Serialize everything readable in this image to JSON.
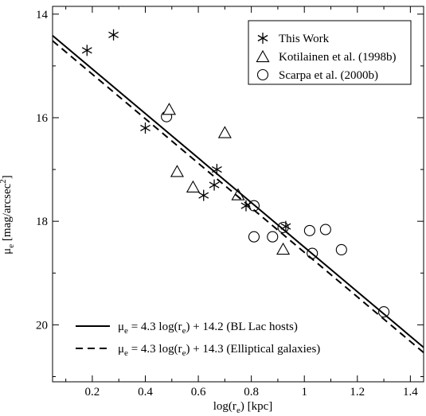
{
  "chart_data": {
    "type": "scatter",
    "xlabel": {
      "main": "log(r",
      "sub": "e",
      "tail": ") [kpc]"
    },
    "ylabel": {
      "main": "μ",
      "sub": "e",
      "mid": " [mag/arcsec",
      "sup": "2",
      "tail": "]"
    },
    "xlim": [
      0.05,
      1.45
    ],
    "ylim": [
      21.1,
      13.85
    ],
    "y_inverted": true,
    "x_ticks": [
      "0.2",
      "0.4",
      "0.6",
      "0.8",
      "1",
      "1.2",
      "1.4"
    ],
    "y_ticks": [
      "14",
      "16",
      "18",
      "20"
    ],
    "grid": false,
    "legend_position": "top-right",
    "series": [
      {
        "name": "This Work",
        "marker": "asterisk",
        "x": [
          0.18,
          0.28,
          0.4,
          0.62,
          0.66,
          0.67,
          0.78,
          0.93
        ],
        "y": [
          14.7,
          14.4,
          16.2,
          17.5,
          17.3,
          17.0,
          17.7,
          18.1
        ]
      },
      {
        "name": "Kotilainen et al. (1998b)",
        "marker": "triangle",
        "x": [
          0.49,
          0.52,
          0.58,
          0.7,
          0.75,
          0.92
        ],
        "y": [
          15.85,
          17.05,
          17.35,
          16.3,
          17.5,
          18.55
        ]
      },
      {
        "name": "Scarpa et al. (2000b)",
        "marker": "circle",
        "x": [
          0.48,
          0.81,
          0.81,
          0.88,
          0.92,
          1.02,
          1.03,
          1.08,
          1.14,
          1.3
        ],
        "y": [
          15.98,
          17.7,
          18.3,
          18.3,
          18.12,
          18.18,
          18.62,
          18.16,
          18.55,
          19.75
        ]
      }
    ],
    "fit_lines": [
      {
        "label_mu": "μ",
        "label_sub": "e",
        "label_rest": " = 4.3 log(r",
        "label_sub2": "e",
        "label_tail": ") + 14.2 (BL Lac hosts)",
        "slope": 4.3,
        "intercept": 14.2,
        "style": "solid"
      },
      {
        "label_mu": "μ",
        "label_sub": "e",
        "label_rest": " = 4.3 log(r",
        "label_sub2": "e",
        "label_tail": ") + 14.3 (Elliptical galaxies)",
        "slope": 4.3,
        "intercept": 14.3,
        "style": "dashed"
      }
    ]
  }
}
